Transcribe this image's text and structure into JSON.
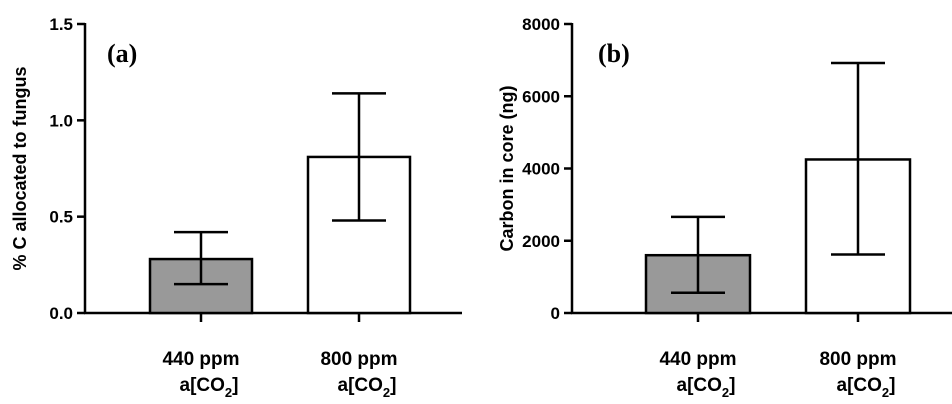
{
  "chart_data": [
    {
      "type": "bar",
      "panel_label": "(a)",
      "ylabel": "% C allocated to fungus",
      "xlabel": "",
      "ylim": [
        0,
        1.5
      ],
      "yticks": [
        0.0,
        0.5,
        1.0,
        1.5
      ],
      "ytick_labels": [
        "0.0",
        "0.5",
        "1.0",
        "1.5"
      ],
      "categories": [
        {
          "line1": "440 ppm",
          "line2_prefix": "a[CO",
          "line2_sub": "2",
          "line2_suffix": "]"
        },
        {
          "line1": "800 ppm",
          "line2_prefix": "a[CO",
          "line2_sub": "2",
          "line2_suffix": "]"
        }
      ],
      "values": [
        0.28,
        0.81
      ],
      "error_low": [
        0.15,
        0.48
      ],
      "error_high": [
        0.42,
        1.14
      ],
      "bar_colors": [
        "#999999",
        "#ffffff"
      ],
      "grid": false
    },
    {
      "type": "bar",
      "panel_label": "(b)",
      "ylabel": "Carbon in core (ng)",
      "xlabel": "",
      "ylim": [
        0,
        8000
      ],
      "yticks": [
        0,
        2000,
        4000,
        6000,
        8000
      ],
      "ytick_labels": [
        "0",
        "2000",
        "4000",
        "6000",
        "8000"
      ],
      "categories": [
        {
          "line1": "440 ppm",
          "line2_prefix": "a[CO",
          "line2_sub": "2",
          "line2_suffix": "]"
        },
        {
          "line1": "800 ppm",
          "line2_prefix": "a[CO",
          "line2_sub": "2",
          "line2_suffix": "]"
        }
      ],
      "values": [
        1600,
        4250
      ],
      "error_low": [
        560,
        1620
      ],
      "error_high": [
        2660,
        6920
      ],
      "bar_colors": [
        "#999999",
        "#ffffff"
      ],
      "grid": false
    }
  ]
}
